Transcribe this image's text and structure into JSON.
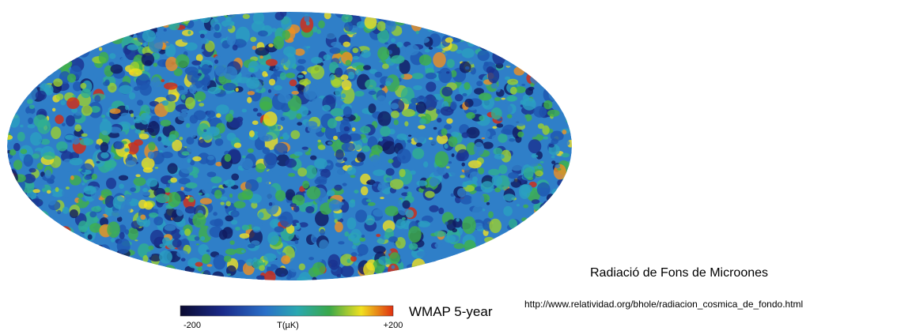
{
  "map": {
    "title": "WMAP 5-year",
    "colorbar": {
      "min_label": "-200",
      "axis_label": "T(µK)",
      "max_label": "+200"
    }
  },
  "caption": "Radiació de Fons de Microones",
  "source_url": "http://www.relatividad.org/bhole/radiacion_cosmica_de_fondo.html"
}
